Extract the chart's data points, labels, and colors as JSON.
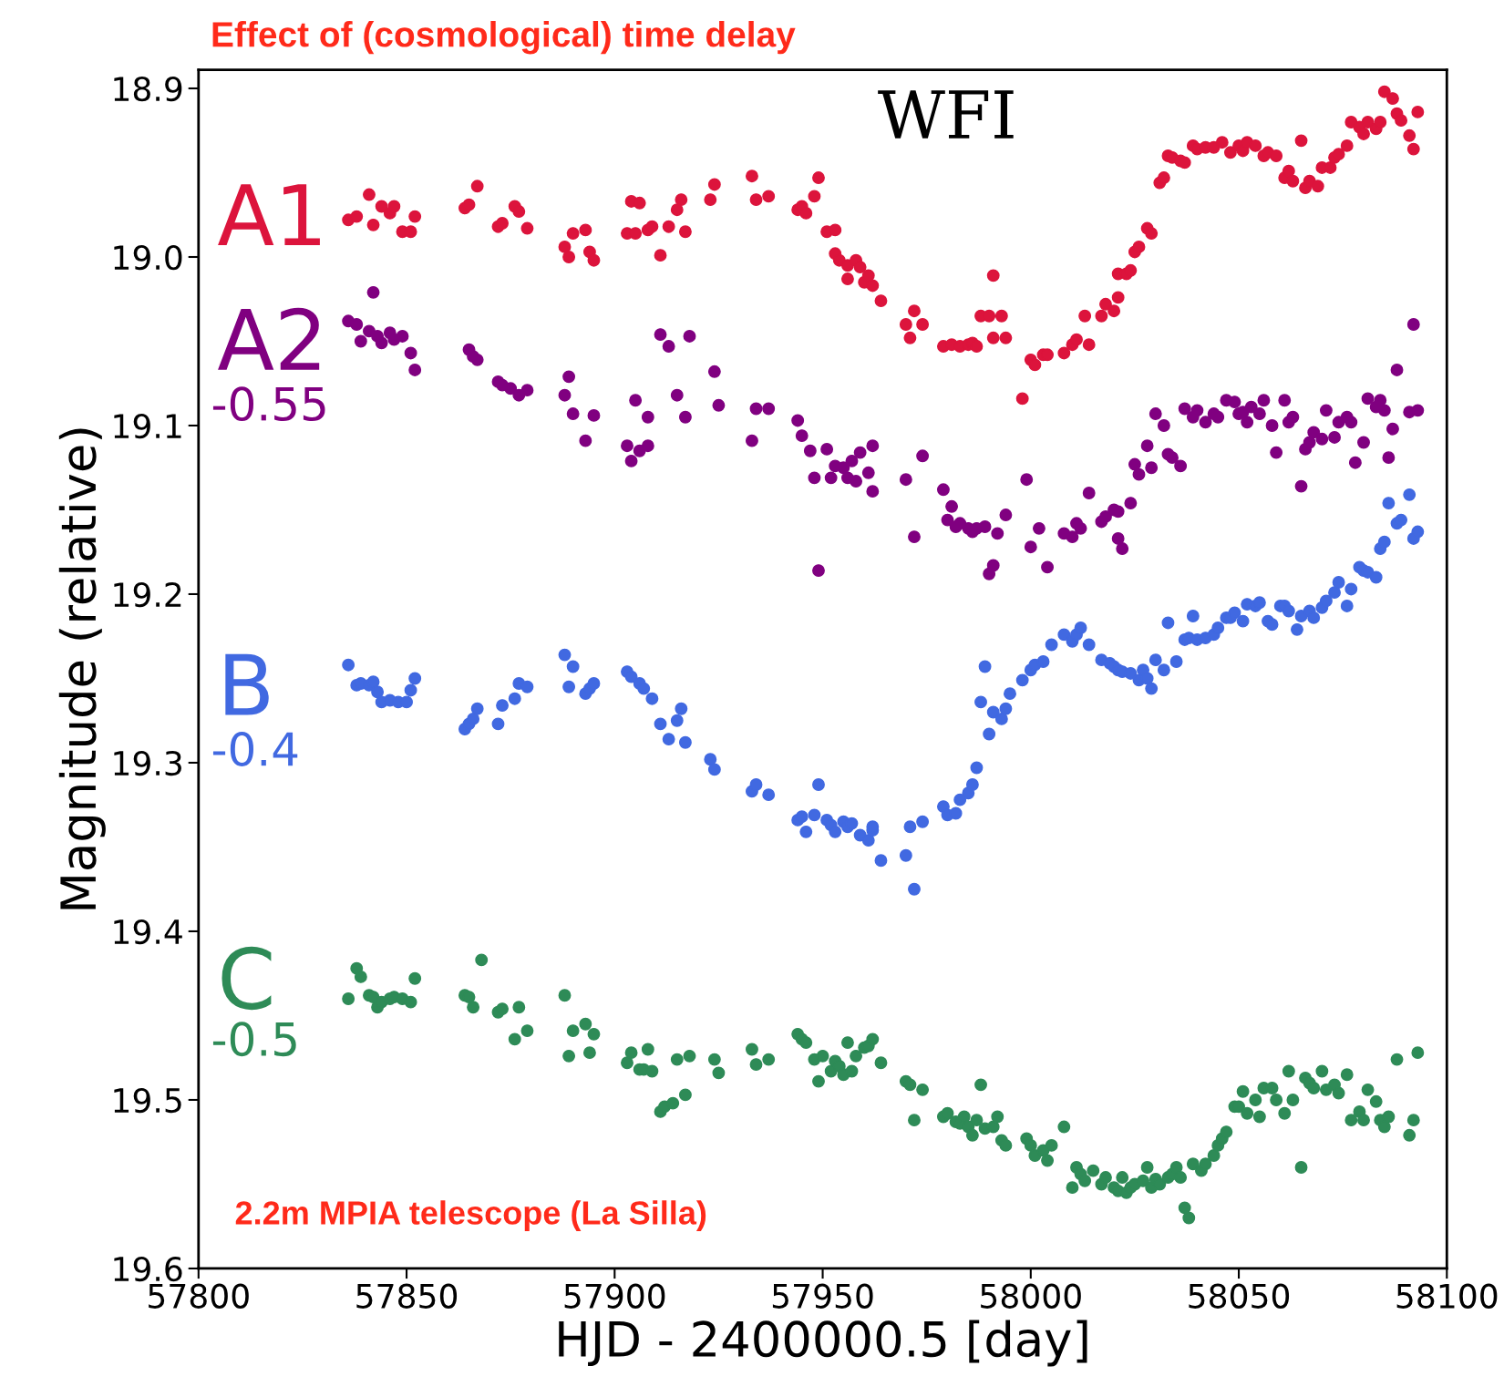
{
  "chart_data": {
    "type": "scatter",
    "title": "Effect of (cosmological) time delay",
    "xlabel": "HJD - 2400000.5 [day]",
    "ylabel": "Magnitude (relative)",
    "xlim": [
      57800,
      58100
    ],
    "xticks": [
      57800,
      57850,
      57900,
      57950,
      58000,
      58050,
      58100
    ],
    "ylim": [
      19.6,
      18.889
    ],
    "yticks": [
      18.9,
      {
        "value": 19.0,
        "label": "19.0"
      },
      19.1,
      19.2,
      19.3,
      19.4,
      19.5,
      19.6
    ],
    "grid": false,
    "legend": false,
    "marker": "circle",
    "annotations": [
      "WFI",
      "-0.55",
      "-0.4",
      "-0.5",
      "2.2m MPIA telescope (La Silla)"
    ],
    "series": [
      {
        "name": "A1",
        "color": "#dc143c",
        "x": [
          57836,
          57838,
          57841,
          57842,
          57844,
          57846,
          57847,
          57849,
          57851,
          57852,
          57864,
          57865,
          57867,
          57872,
          57873,
          57876,
          57877,
          57879,
          57888,
          57889,
          57890,
          57893,
          57894,
          57895,
          57903,
          57904,
          57905,
          57906,
          57908,
          57909,
          57911,
          57913,
          57915,
          57916,
          57917,
          57923,
          57924,
          57933,
          57934,
          57937,
          57944,
          57945,
          57946,
          57948,
          57949,
          57951,
          57953,
          57953,
          57954,
          57956,
          57956,
          57958,
          57959,
          57960,
          57961,
          57962,
          57964,
          57970,
          57972,
          57974,
          57971,
          57979,
          57981,
          57983,
          57985,
          57986,
          57987,
          57988,
          57990,
          57991,
          57991,
          57993,
          57994,
          57998,
          58000,
          58001,
          58003,
          58004,
          58008,
          58010,
          58011,
          58013,
          58014,
          58017,
          58018,
          58020,
          58021,
          58021,
          58023,
          58024,
          58025,
          58026,
          58028,
          58029,
          58031,
          58032,
          58033,
          58034,
          58036,
          58037,
          58039,
          58040,
          58042,
          58044,
          58046,
          58048,
          58050,
          58051,
          58052,
          58054,
          58056,
          58057,
          58059,
          58061,
          58062,
          58063,
          58065,
          58066,
          58067,
          58069,
          58070,
          58072,
          58073,
          58074,
          58076,
          58077,
          58079,
          58080,
          58081,
          58083,
          58084,
          58085,
          58087,
          58088,
          58089,
          58091,
          58092,
          58093
        ],
        "values": [
          18.978,
          18.976,
          18.963,
          18.981,
          18.97,
          18.974,
          18.97,
          18.985,
          18.985,
          18.976,
          18.971,
          18.969,
          18.958,
          18.982,
          18.98,
          18.97,
          18.973,
          18.983,
          18.994,
          19.0,
          18.986,
          18.984,
          18.997,
          19.002,
          18.986,
          18.967,
          18.986,
          18.968,
          18.984,
          18.982,
          18.999,
          18.982,
          18.972,
          18.966,
          18.985,
          18.966,
          18.957,
          18.952,
          18.966,
          18.964,
          18.972,
          18.97,
          18.974,
          18.964,
          18.953,
          18.985,
          18.984,
          18.998,
          19.002,
          19.005,
          19.013,
          19.002,
          19.006,
          19.015,
          19.011,
          19.017,
          19.026,
          19.04,
          19.032,
          19.04,
          19.048,
          19.053,
          19.052,
          19.053,
          19.052,
          19.051,
          19.053,
          19.035,
          19.035,
          19.011,
          19.048,
          19.035,
          19.048,
          19.084,
          19.061,
          19.064,
          19.058,
          19.058,
          19.057,
          19.052,
          19.049,
          19.035,
          19.052,
          19.035,
          19.028,
          19.032,
          19.024,
          19.01,
          19.01,
          19.008,
          18.997,
          18.994,
          18.983,
          18.986,
          18.956,
          18.953,
          18.94,
          18.941,
          18.943,
          18.944,
          18.934,
          18.936,
          18.935,
          18.935,
          18.932,
          18.938,
          18.934,
          18.937,
          18.932,
          18.934,
          18.94,
          18.938,
          18.94,
          18.953,
          18.949,
          18.955,
          18.931,
          18.959,
          18.955,
          18.958,
          18.947,
          18.947,
          18.941,
          18.939,
          18.934,
          18.92,
          18.923,
          18.927,
          18.92,
          18.924,
          18.92,
          18.902,
          18.906,
          18.915,
          18.919,
          18.928,
          18.936,
          18.914
        ]
      },
      {
        "name": "A2",
        "color": "#800080",
        "x": [
          57836,
          57838,
          57839,
          57841,
          57842,
          57843,
          57844,
          57846,
          57847,
          57849,
          57851,
          57852,
          57865,
          57866,
          57867,
          57872,
          57873,
          57875,
          57877,
          57879,
          57888,
          57889,
          57890,
          57893,
          57895,
          57903,
          57904,
          57905,
          57906,
          57908,
          57908,
          57911,
          57913,
          57915,
          57917,
          57918,
          57924,
          57925,
          57933,
          57934,
          57937,
          57944,
          57945,
          57947,
          57948,
          57949,
          57951,
          57952,
          57953,
          57955,
          57956,
          57957,
          57958,
          57959,
          57961,
          57962,
          57962,
          57970,
          57972,
          57974,
          57979,
          57981,
          57980,
          57982,
          57983,
          57985,
          57986,
          57987,
          57989,
          57990,
          57991,
          57992,
          57994,
          57999,
          58000,
          58002,
          58004,
          58008,
          58010,
          58011,
          58012,
          58014,
          58017,
          58018,
          58020,
          58021,
          58022,
          58021,
          58024,
          58025,
          58026,
          58028,
          58029,
          58030,
          58032,
          58033,
          58034,
          58036,
          58037,
          58039,
          58040,
          58042,
          58044,
          58045,
          58047,
          58049,
          58050,
          58051,
          58052,
          58053,
          58055,
          58056,
          58058,
          58059,
          58061,
          58062,
          58063,
          58065,
          58066,
          58067,
          58068,
          58070,
          58071,
          58073,
          58074,
          58076,
          58077,
          58078,
          58080,
          58081,
          58083,
          58084,
          58085,
          58086,
          58087,
          58088,
          58091,
          58092,
          58093
        ],
        "values": [
          19.038,
          19.04,
          19.05,
          19.044,
          19.021,
          19.047,
          19.051,
          19.045,
          19.049,
          19.047,
          19.057,
          19.067,
          19.055,
          19.059,
          19.061,
          19.074,
          19.076,
          19.078,
          19.082,
          19.079,
          19.082,
          19.071,
          19.093,
          19.109,
          19.094,
          19.112,
          19.121,
          19.085,
          19.115,
          19.112,
          19.095,
          19.046,
          19.053,
          19.082,
          19.095,
          19.047,
          19.068,
          19.088,
          19.109,
          19.09,
          19.09,
          19.097,
          19.106,
          19.115,
          19.131,
          19.186,
          19.114,
          19.131,
          19.124,
          19.125,
          19.131,
          19.121,
          19.133,
          19.116,
          19.128,
          19.139,
          19.112,
          19.132,
          19.166,
          19.118,
          19.138,
          19.148,
          19.156,
          19.16,
          19.158,
          19.161,
          19.163,
          19.161,
          19.16,
          19.188,
          19.183,
          19.164,
          19.153,
          19.132,
          19.172,
          19.161,
          19.184,
          19.164,
          19.166,
          19.158,
          19.161,
          19.14,
          19.157,
          19.154,
          19.15,
          19.151,
          19.173,
          19.167,
          19.146,
          19.123,
          19.129,
          19.112,
          19.125,
          19.093,
          19.1,
          19.117,
          19.119,
          19.124,
          19.09,
          19.095,
          19.091,
          19.098,
          19.093,
          19.095,
          19.085,
          19.086,
          19.093,
          19.092,
          19.098,
          19.089,
          19.093,
          19.085,
          19.1,
          19.116,
          19.085,
          19.098,
          19.095,
          19.136,
          19.114,
          19.11,
          19.104,
          19.108,
          19.091,
          19.107,
          19.098,
          19.095,
          19.098,
          19.122,
          19.11,
          19.084,
          19.089,
          19.085,
          19.091,
          19.119,
          19.102,
          19.067,
          19.092,
          19.04,
          19.091
        ]
      },
      {
        "name": "B",
        "color": "#4169e1",
        "x": [
          57836,
          57838,
          57839,
          57841,
          57842,
          57843,
          57844,
          57846,
          57848,
          57850,
          57851,
          57852,
          57864,
          57865,
          57866,
          57867,
          57872,
          57873,
          57876,
          57877,
          57879,
          57888,
          57889,
          57890,
          57893,
          57894,
          57895,
          57903,
          57904,
          57906,
          57907,
          57909,
          57911,
          57913,
          57915,
          57916,
          57917,
          57923,
          57924,
          57933,
          57934,
          57937,
          57944,
          57945,
          57946,
          57948,
          57949,
          57951,
          57952,
          57953,
          57955,
          57956,
          57957,
          57959,
          57961,
          57962,
          57962,
          57964,
          57970,
          57971,
          57972,
          57974,
          57979,
          57980,
          57982,
          57983,
          57985,
          57986,
          57987,
          57988,
          57989,
          57990,
          57991,
          57993,
          57994,
          57995,
          57998,
          58000,
          58001,
          58003,
          58005,
          58008,
          58010,
          58011,
          58012,
          58014,
          58017,
          58019,
          58020,
          58021,
          58022,
          58024,
          58026,
          58027,
          58028,
          58029,
          58030,
          58032,
          58033,
          58035,
          58037,
          58038,
          58039,
          58040,
          58042,
          58044,
          58045,
          58047,
          58048,
          58049,
          58051,
          58052,
          58054,
          58055,
          58057,
          58058,
          58060,
          58061,
          58062,
          58064,
          58065,
          58067,
          58068,
          58070,
          58071,
          58073,
          58074,
          58076,
          58077,
          58079,
          58080,
          58081,
          58083,
          58084,
          58085,
          58086,
          58088,
          58089,
          58091,
          58092,
          58093
        ],
        "values": [
          19.242,
          19.254,
          19.253,
          19.254,
          19.252,
          19.258,
          19.264,
          19.263,
          19.264,
          19.264,
          19.257,
          19.25,
          19.28,
          19.277,
          19.274,
          19.268,
          19.277,
          19.266,
          19.262,
          19.253,
          19.255,
          19.236,
          19.255,
          19.243,
          19.259,
          19.256,
          19.253,
          19.246,
          19.249,
          19.253,
          19.256,
          19.262,
          19.277,
          19.286,
          19.275,
          19.268,
          19.288,
          19.298,
          19.304,
          19.317,
          19.313,
          19.319,
          19.334,
          19.332,
          19.341,
          19.331,
          19.313,
          19.334,
          19.337,
          19.341,
          19.335,
          19.338,
          19.336,
          19.343,
          19.346,
          19.34,
          19.338,
          19.358,
          19.355,
          19.338,
          19.375,
          19.335,
          19.326,
          19.331,
          19.33,
          19.322,
          19.318,
          19.313,
          19.303,
          19.264,
          19.243,
          19.283,
          19.27,
          19.274,
          19.268,
          19.259,
          19.251,
          19.245,
          19.242,
          19.24,
          19.23,
          19.224,
          19.228,
          19.224,
          19.22,
          19.23,
          19.239,
          19.241,
          19.243,
          19.245,
          19.246,
          19.247,
          19.251,
          19.245,
          19.25,
          19.256,
          19.239,
          19.245,
          19.217,
          19.24,
          19.227,
          19.226,
          19.213,
          19.227,
          19.226,
          19.224,
          19.22,
          19.214,
          19.214,
          19.211,
          19.216,
          19.206,
          19.207,
          19.205,
          19.216,
          19.218,
          19.207,
          19.207,
          19.21,
          19.221,
          19.213,
          19.21,
          19.214,
          19.208,
          19.204,
          19.199,
          19.193,
          19.207,
          19.197,
          19.184,
          19.186,
          19.187,
          19.19,
          19.173,
          19.169,
          19.146,
          19.158,
          19.156,
          19.141,
          19.167,
          19.163
        ]
      },
      {
        "name": "C",
        "color": "#2e8b57",
        "x": [
          57836,
          57838,
          57839,
          57841,
          57842,
          57843,
          57844,
          57846,
          57847,
          57849,
          57851,
          57852,
          57864,
          57865,
          57866,
          57868,
          57872,
          57873,
          57876,
          57877,
          57879,
          57888,
          57889,
          57890,
          57893,
          57894,
          57895,
          57903,
          57904,
          57906,
          57907,
          57908,
          57909,
          57911,
          57912,
          57914,
          57915,
          57917,
          57918,
          57924,
          57925,
          57933,
          57934,
          57937,
          57944,
          57945,
          57946,
          57948,
          57949,
          57950,
          57952,
          57953,
          57954,
          57955,
          57956,
          57957,
          57958,
          57960,
          57961,
          57962,
          57964,
          57970,
          57971,
          57972,
          57974,
          57979,
          57980,
          57982,
          57983,
          57984,
          57985,
          57986,
          57987,
          57988,
          57989,
          57991,
          57992,
          57993,
          57994,
          57999,
          58000,
          58001,
          58003,
          58004,
          58005,
          58008,
          58010,
          58011,
          58012,
          58013,
          58015,
          58017,
          58018,
          58020,
          58021,
          58022,
          58023,
          58024,
          58025,
          58027,
          58028,
          58029,
          58030,
          58031,
          58033,
          58034,
          58035,
          58036,
          58037,
          58038,
          58039,
          58041,
          58042,
          58044,
          58045,
          58046,
          58047,
          58049,
          58050,
          58051,
          58052,
          58054,
          58055,
          58056,
          58058,
          58059,
          58061,
          58062,
          58063,
          58065,
          58066,
          58067,
          58068,
          58070,
          58071,
          58073,
          58074,
          58076,
          58077,
          58079,
          58080,
          58081,
          58083,
          58084,
          58085,
          58086,
          58088,
          58091,
          58092,
          58093
        ],
        "values": [
          19.44,
          19.422,
          19.427,
          19.438,
          19.439,
          19.445,
          19.442,
          19.44,
          19.439,
          19.44,
          19.442,
          19.428,
          19.438,
          19.439,
          19.445,
          19.417,
          19.448,
          19.446,
          19.464,
          19.445,
          19.459,
          19.438,
          19.474,
          19.459,
          19.455,
          19.472,
          19.461,
          19.478,
          19.472,
          19.482,
          19.482,
          19.47,
          19.483,
          19.507,
          19.504,
          19.502,
          19.476,
          19.497,
          19.474,
          19.476,
          19.484,
          19.47,
          19.479,
          19.476,
          19.461,
          19.464,
          19.466,
          19.476,
          19.489,
          19.474,
          19.483,
          19.477,
          19.48,
          19.485,
          19.466,
          19.483,
          19.474,
          19.469,
          19.468,
          19.464,
          19.478,
          19.489,
          19.491,
          19.512,
          19.494,
          19.51,
          19.508,
          19.513,
          19.514,
          19.51,
          19.516,
          19.521,
          19.512,
          19.491,
          19.517,
          19.516,
          19.51,
          19.524,
          19.527,
          19.523,
          19.527,
          19.533,
          19.53,
          19.536,
          19.527,
          19.516,
          19.552,
          19.54,
          19.544,
          19.548,
          19.542,
          19.55,
          19.546,
          19.552,
          19.554,
          19.546,
          19.555,
          19.552,
          19.55,
          19.548,
          19.54,
          19.552,
          19.547,
          19.55,
          19.546,
          19.544,
          19.54,
          19.546,
          19.564,
          19.57,
          19.538,
          19.542,
          19.538,
          19.533,
          19.527,
          19.523,
          19.519,
          19.504,
          19.504,
          19.495,
          19.508,
          19.5,
          19.51,
          19.493,
          19.493,
          19.5,
          19.508,
          19.483,
          19.5,
          19.54,
          19.487,
          19.49,
          19.493,
          19.483,
          19.494,
          19.491,
          19.496,
          19.485,
          19.512,
          19.507,
          19.512,
          19.494,
          19.501,
          19.512,
          19.516,
          19.51,
          19.476,
          19.521,
          19.512,
          19.472
        ]
      }
    ]
  }
}
